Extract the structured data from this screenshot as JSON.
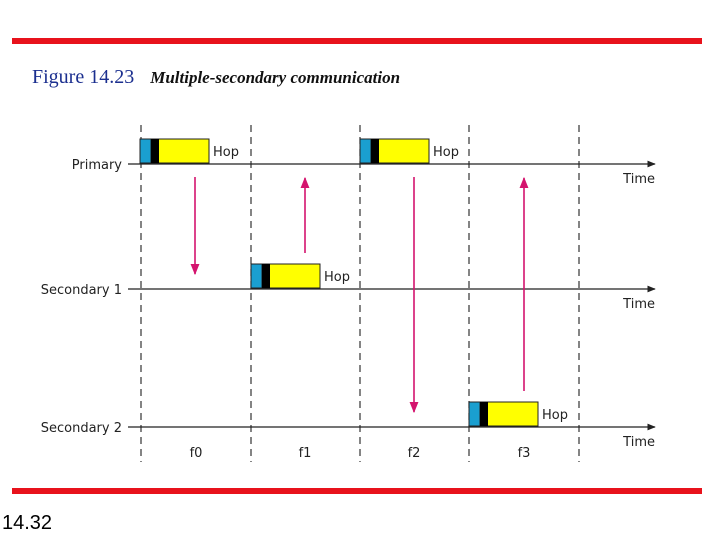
{
  "figure": {
    "number": "Figure 14.23",
    "caption": "Multiple-secondary communication"
  },
  "page_number": "14.32",
  "stations": [
    {
      "id": "primary",
      "label": "Primary",
      "axis_label": "Time"
    },
    {
      "id": "secondary1",
      "label": "Secondary 1",
      "axis_label": "Time"
    },
    {
      "id": "secondary2",
      "label": "Secondary 2",
      "axis_label": "Time"
    }
  ],
  "slots": [
    "f0",
    "f1",
    "f2",
    "f3"
  ],
  "frames": [
    {
      "slot": 0,
      "station": "primary",
      "label": "Hop"
    },
    {
      "slot": 1,
      "station": "secondary1",
      "label": "Hop"
    },
    {
      "slot": 2,
      "station": "primary",
      "label": "Hop"
    },
    {
      "slot": 3,
      "station": "secondary2",
      "label": "Hop"
    }
  ],
  "transmissions": [
    {
      "slot": 0,
      "from": "primary",
      "to": "secondary1"
    },
    {
      "slot": 1,
      "from": "secondary1",
      "to": "primary"
    },
    {
      "slot": 2,
      "from": "primary",
      "to": "secondary2"
    },
    {
      "slot": 3,
      "from": "secondary2",
      "to": "primary"
    }
  ],
  "colors": {
    "rule": "#e8121c",
    "frame_fill": "#ffff00",
    "frame_header": "#1a9fd0",
    "frame_flag": "#000000",
    "arrow": "#d4146e",
    "timeline": "#222222"
  }
}
